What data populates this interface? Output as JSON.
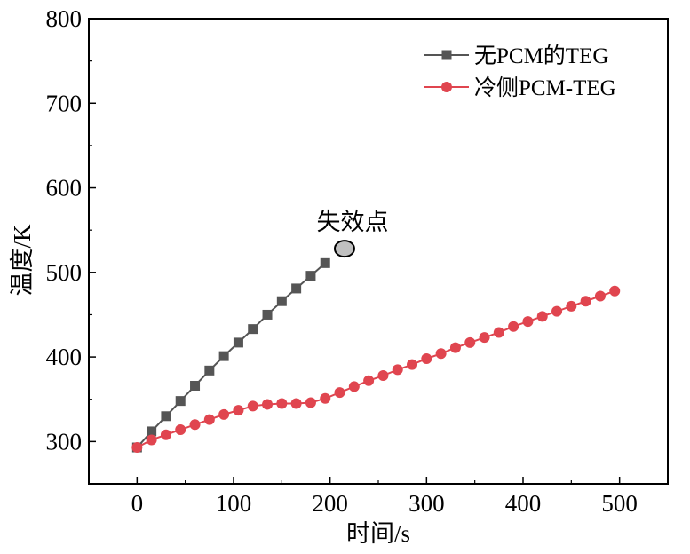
{
  "chart_data": {
    "type": "line",
    "xlabel": "时间/s",
    "ylabel": "温度/K",
    "xlim": [
      -50,
      550
    ],
    "ylim": [
      250,
      800
    ],
    "xticks": [
      0,
      100,
      200,
      300,
      400,
      500
    ],
    "yticks": [
      300,
      400,
      500,
      600,
      700,
      800
    ],
    "grid": false,
    "legend_position": "top-right",
    "series": [
      {
        "name": "无PCM的TEG",
        "color": "#555555",
        "marker": "square",
        "x": [
          0,
          15,
          30,
          45,
          60,
          75,
          90,
          105,
          120,
          135,
          150,
          165,
          180,
          195
        ],
        "y": [
          293,
          312,
          330,
          348,
          366,
          384,
          401,
          417,
          433,
          450,
          466,
          481,
          496,
          511
        ]
      },
      {
        "name": "冷侧PCM-TEG",
        "color": "#e0454f",
        "marker": "circle",
        "x": [
          0,
          15,
          30,
          45,
          60,
          75,
          90,
          105,
          120,
          135,
          150,
          165,
          180,
          195,
          210,
          225,
          240,
          255,
          270,
          285,
          300,
          315,
          330,
          345,
          360,
          375,
          390,
          405,
          420,
          435,
          450,
          465,
          480,
          495
        ],
        "y": [
          293,
          302,
          308,
          314,
          320,
          326,
          332,
          337,
          342,
          344,
          345,
          345,
          346,
          351,
          358,
          365,
          372,
          378,
          385,
          391,
          398,
          404,
          411,
          417,
          423,
          429,
          436,
          442,
          448,
          454,
          460,
          466,
          472,
          478
        ]
      }
    ],
    "annotations": [
      {
        "text": "失效点",
        "x": 215,
        "y": 528,
        "marker": "ellipse",
        "color": "#c0c0c0"
      }
    ]
  }
}
